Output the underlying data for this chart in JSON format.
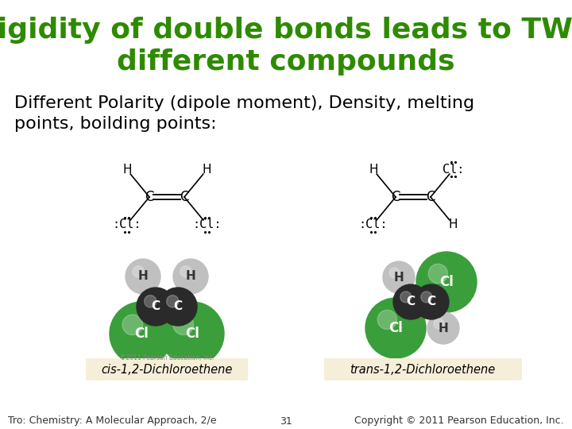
{
  "title_line1": "Rigidity of double bonds leads to TWO",
  "title_line2": "different compounds",
  "title_color": "#2e8b00",
  "title_fontsize": 26,
  "subtitle": "Different Polarity (dipole moment), Density, melting\npoints, boilding points:",
  "subtitle_fontsize": 16,
  "subtitle_color": "#000000",
  "footer_left": "Tro: Chemistry: A Molecular Approach, 2/e",
  "footer_center": "31",
  "footer_right": "Copyright © 2011 Pearson Education, Inc.",
  "footer_fontsize": 9,
  "label_cis": "cis-1,2-Dichloroethene",
  "label_trans": "trans-1,2-Dichloroethene",
  "label_bg": "#f5eed8",
  "bg_color": "#ffffff",
  "green_atom": "#3a9e3a",
  "dark_atom": "#2a2a2a",
  "silver_atom": "#c0c0c0"
}
